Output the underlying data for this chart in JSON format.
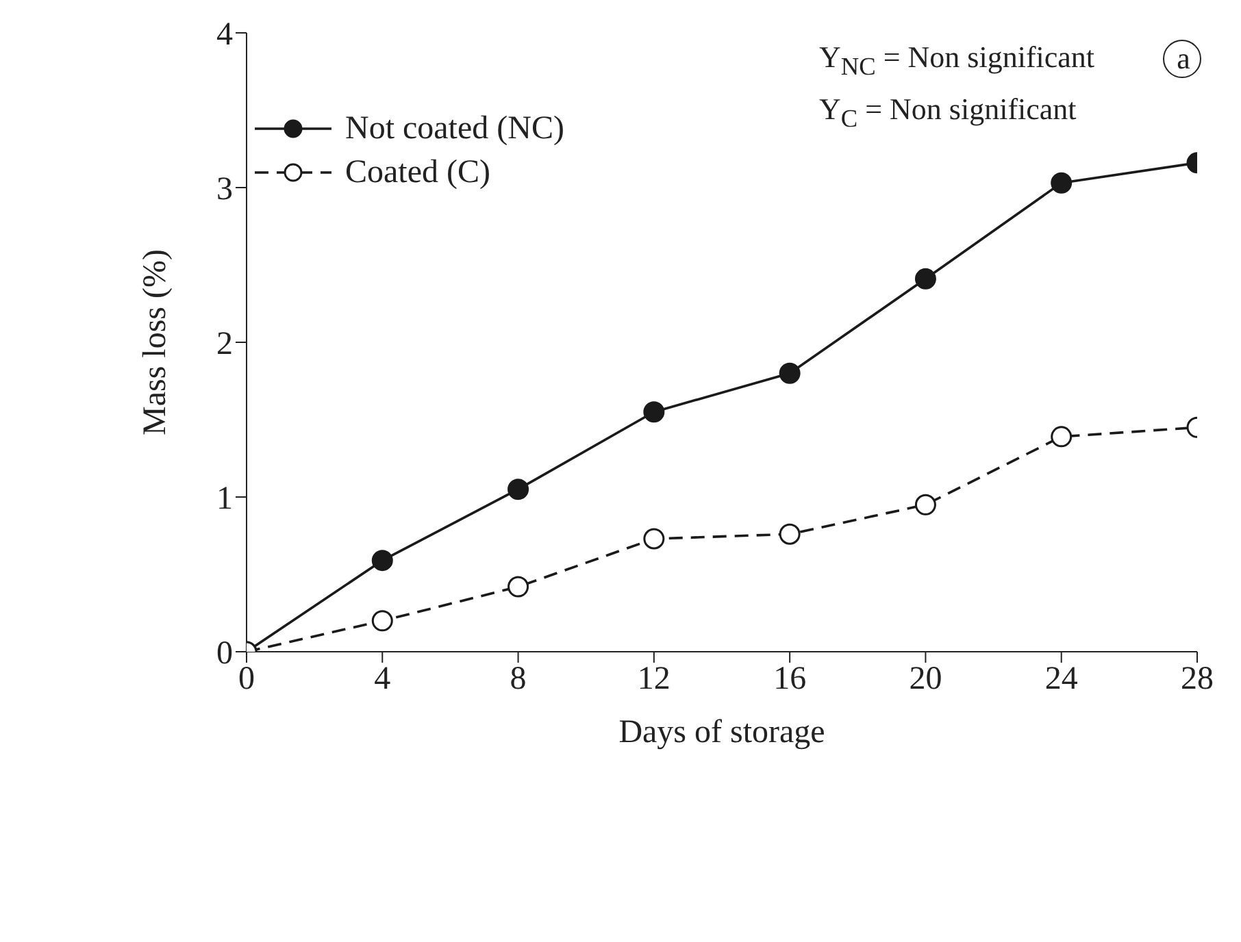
{
  "chart_data": {
    "type": "line",
    "xlabel": "Days of storage",
    "ylabel": "Mass loss (%)",
    "x": [
      0,
      4,
      8,
      12,
      16,
      20,
      24,
      28
    ],
    "series": [
      {
        "name": "Not coated (NC)",
        "color": "#1a1a1a",
        "values": [
          0,
          0.59,
          1.05,
          1.55,
          1.8,
          2.41,
          3.03,
          3.16
        ],
        "line_style": "solid"
      },
      {
        "name": "Coated (C)",
        "color": "#1a1a1a",
        "values": [
          0,
          0.2,
          0.42,
          0.73,
          0.76,
          0.95,
          1.39,
          1.45
        ],
        "line_style": "dashed"
      }
    ],
    "xlim": [
      0,
      28
    ],
    "xticks": [
      0,
      4,
      8,
      12,
      16,
      20,
      24,
      28
    ],
    "ylim": [
      0,
      4
    ],
    "yticks": [
      0,
      1,
      2,
      3,
      4
    ],
    "grid": false,
    "legend": "top left",
    "marker": "circle",
    "annotations": [
      "Y$_{NC}$ = Non significant",
      "Y$_{C}$ = Non significant",
      "a"
    ]
  }
}
